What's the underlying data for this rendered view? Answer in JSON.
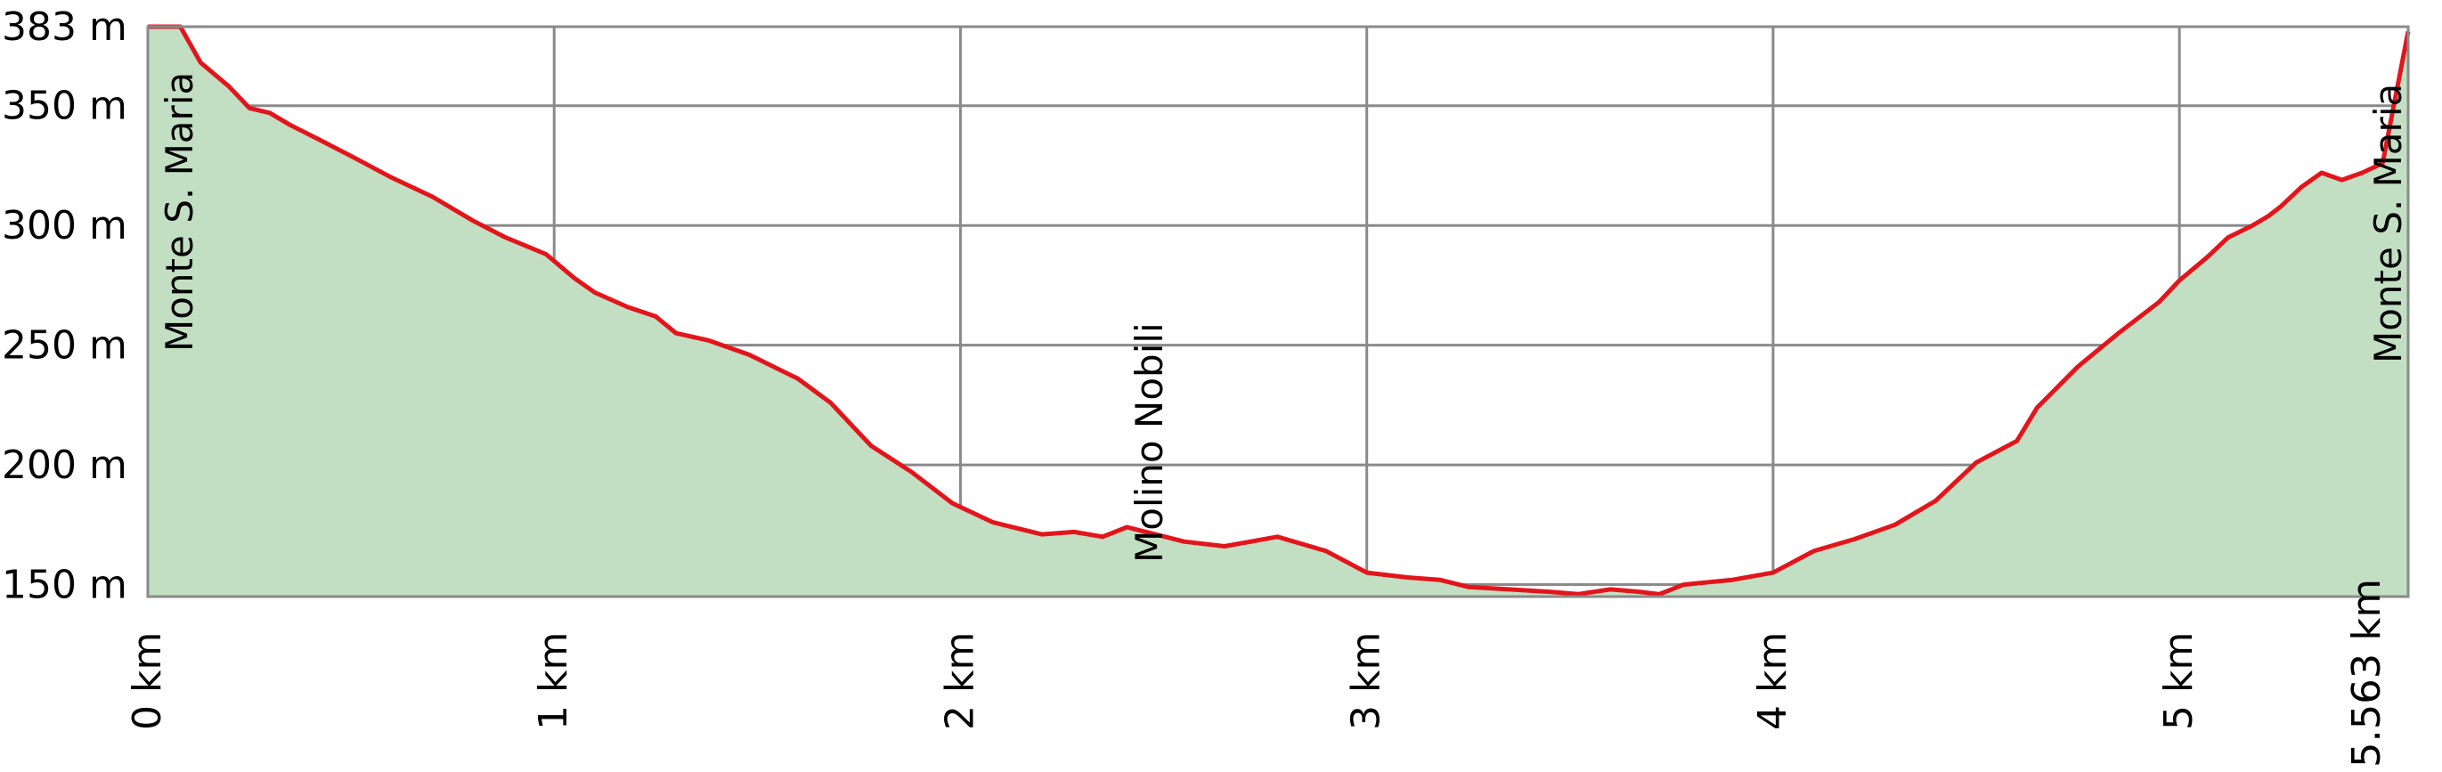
{
  "chart_data": {
    "type": "area",
    "title": "",
    "xlabel": "",
    "ylabel": "",
    "xlim": [
      0,
      5.563
    ],
    "ylim": [
      145,
      383
    ],
    "grid": true,
    "colors": {
      "line": "#e3151c",
      "fill": "#c3dfc3",
      "grid": "#8a8a8a",
      "frame": "#8a8a8a"
    },
    "y_ticks": [
      {
        "value": 150,
        "label": "150 m"
      },
      {
        "value": 200,
        "label": "200 m"
      },
      {
        "value": 250,
        "label": "250 m"
      },
      {
        "value": 300,
        "label": "300 m"
      },
      {
        "value": 350,
        "label": "350 m"
      },
      {
        "value": 383,
        "label": "383 m"
      }
    ],
    "x_ticks": [
      {
        "value": 0,
        "label": "0 km"
      },
      {
        "value": 1,
        "label": "1 km"
      },
      {
        "value": 2,
        "label": "2 km"
      },
      {
        "value": 3,
        "label": "3 km"
      },
      {
        "value": 4,
        "label": "4 km"
      },
      {
        "value": 5,
        "label": "5 km"
      },
      {
        "value": 5.563,
        "label": "5.563 km"
      }
    ],
    "annotations": [
      {
        "x": 0,
        "label": "Monte S. Maria"
      },
      {
        "x": 2.4,
        "label": "Molino Nobili"
      },
      {
        "x": 5.563,
        "label": "Monte S. Maria"
      }
    ],
    "series": [
      {
        "x": [
          0,
          0.08,
          0.13,
          0.2,
          0.25,
          0.3,
          0.35,
          0.42,
          0.5,
          0.6,
          0.7,
          0.8,
          0.88,
          0.98,
          1.05,
          1.1,
          1.18,
          1.25,
          1.3,
          1.38,
          1.48,
          1.6,
          1.68,
          1.78,
          1.88,
          1.98,
          2.08,
          2.2,
          2.28,
          2.35,
          2.41,
          2.48,
          2.55,
          2.65,
          2.78,
          2.9,
          3.0,
          3.1,
          3.18,
          3.25,
          3.35,
          3.45,
          3.52,
          3.6,
          3.67,
          3.72,
          3.78,
          3.9,
          4.0,
          4.1,
          4.2,
          4.3,
          4.4,
          4.5,
          4.6,
          4.65,
          4.75,
          4.85,
          4.95,
          5.0,
          5.07,
          5.12,
          5.18,
          5.22,
          5.25,
          5.3,
          5.35,
          5.4,
          5.45,
          5.5,
          5.563
        ],
        "y": [
          383,
          383,
          368,
          358,
          349,
          347,
          342,
          336,
          329,
          320,
          312,
          302,
          295,
          288,
          278,
          272,
          266,
          262,
          255,
          252,
          246,
          236,
          226,
          208,
          197,
          184,
          176,
          171,
          172,
          170,
          174,
          171,
          168,
          166,
          170,
          164,
          155,
          153,
          152,
          149,
          148,
          147,
          146,
          148,
          147,
          146,
          150,
          152,
          155,
          164,
          169,
          175,
          185,
          201,
          210,
          224,
          241,
          255,
          268,
          277,
          287,
          295,
          300,
          304,
          308,
          316,
          322,
          319,
          322,
          326,
          381
        ]
      }
    ]
  }
}
